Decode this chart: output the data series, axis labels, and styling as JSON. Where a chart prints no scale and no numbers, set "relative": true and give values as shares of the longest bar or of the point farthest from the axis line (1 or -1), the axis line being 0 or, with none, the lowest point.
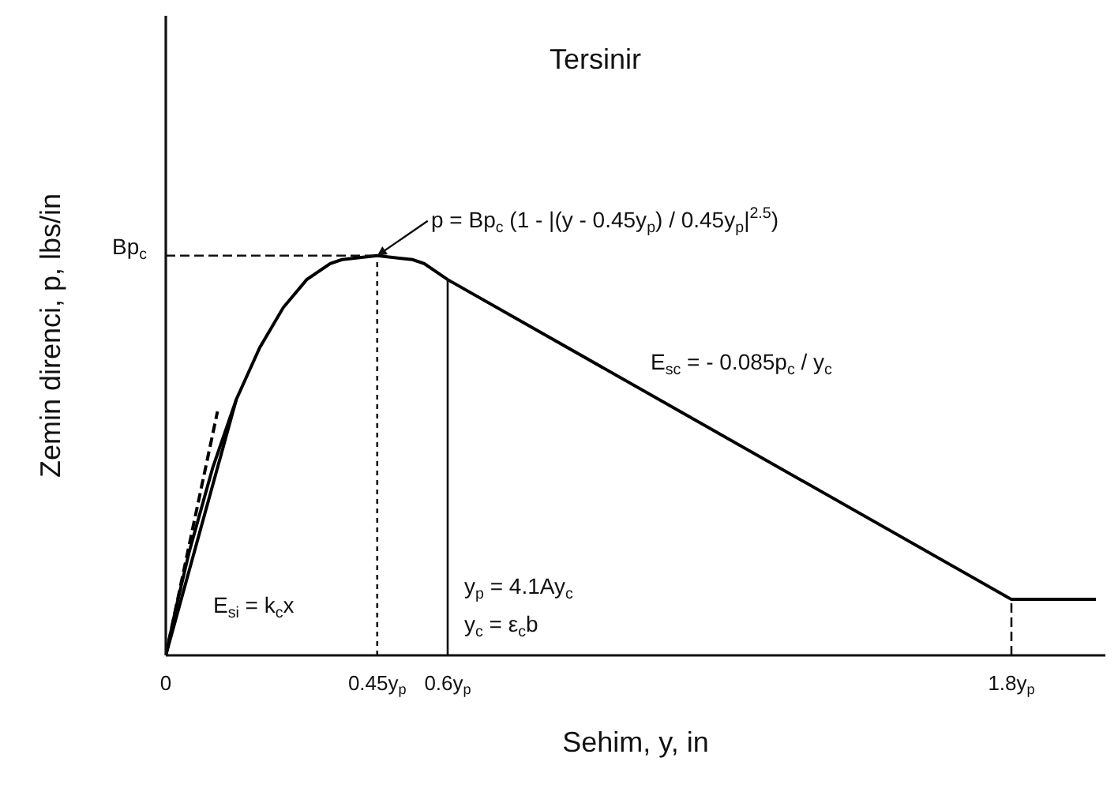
{
  "chart_data": {
    "type": "line",
    "title": "Tersinir",
    "xlabel": "Sehim, y, in",
    "ylabel": "Zemin direnci, p, lbs/in",
    "relative": true,
    "xlim": [
      0,
      2.0
    ],
    "xticks": [
      0,
      {
        "value": 0.45,
        "label": "0.45y$_{p}$"
      },
      {
        "value": 0.6,
        "label": "0.6y$_{p}$"
      },
      {
        "value": 1.8,
        "label": "1.8y$_{p}$"
      }
    ],
    "line_style": "solid",
    "series": [
      {
        "color": "#000000",
        "x": [
          0,
          0.02,
          0.05,
          0.1,
          0.15,
          0.2,
          0.25,
          0.3,
          0.35,
          0.375,
          0.45,
          0.525,
          0.55,
          0.6,
          1.8,
          1.98
        ],
        "values": [
          0,
          0.11,
          0.26,
          0.47,
          0.64,
          0.77,
          0.87,
          0.94,
          0.98,
          0.99,
          1,
          0.99,
          0.98,
          0.94,
          0.14,
          0.14
        ]
      },
      {
        "color": "#000000",
        "x": [
          0,
          0.11
        ],
        "values": [
          0,
          0.61
        ],
        "line_style": "dashed"
      },
      {
        "color": "#000000",
        "x": [
          0,
          0.15
        ],
        "values": [
          0,
          0.64
        ]
      }
    ],
    "ref_lines": [
      {
        "axis": "y",
        "value": 1,
        "label": "Bp$_{c}$",
        "line_style": "dashed"
      },
      {
        "axis": "x",
        "value": 0.45,
        "line_style": "dotted"
      },
      {
        "axis": "x",
        "value": 0.6,
        "line_style": "solid"
      },
      {
        "axis": "x",
        "value": 1.8,
        "line_style": "dashed"
      }
    ],
    "annotations": [
      "p = Bp$_{c}$ (1 - |(y - 0.45y$_{p}$) / 0.45y$_{p}$|$^{2.5}$)",
      "E$_{sc}$ = - 0.085p$_{c}$ / y$_{c}$",
      "E$_{si}$ = k$_{c}$x",
      "y$_{p}$ = 4.1Ay$_{c}$",
      "y$_{c}$ = ε$_{c}$b"
    ]
  }
}
